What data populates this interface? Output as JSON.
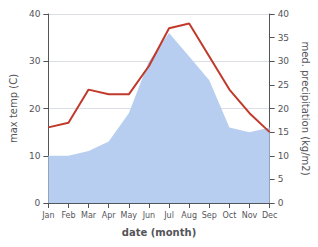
{
  "chart_data": {
    "type": "line",
    "xlabel": "date (month)",
    "ylabel": "max temp (C)",
    "y2label": "med. precipitation (kg/m2)",
    "categories": [
      "Jan",
      "Feb",
      "Mar",
      "Apr",
      "May",
      "Jun",
      "Jul",
      "Aug",
      "Sep",
      "Oct",
      "Nov",
      "Dec"
    ],
    "series": [
      {
        "type": "area",
        "axis": "y2",
        "color": "#b8cef0",
        "values": [
          10,
          10,
          11,
          13,
          19,
          30,
          36,
          31,
          26,
          16,
          15,
          16
        ]
      },
      {
        "type": "line",
        "color": "#c0392b",
        "values": [
          16,
          17,
          24,
          23,
          23,
          29,
          37,
          38,
          31,
          24,
          19,
          15
        ]
      }
    ],
    "ylim": [
      0,
      40
    ],
    "yticks": [
      0,
      10,
      20,
      30,
      40
    ],
    "y2lim": [
      0,
      40
    ],
    "y2ticks": [
      0,
      5,
      10,
      15,
      20,
      25,
      30,
      35,
      40
    ],
    "grid": true
  }
}
